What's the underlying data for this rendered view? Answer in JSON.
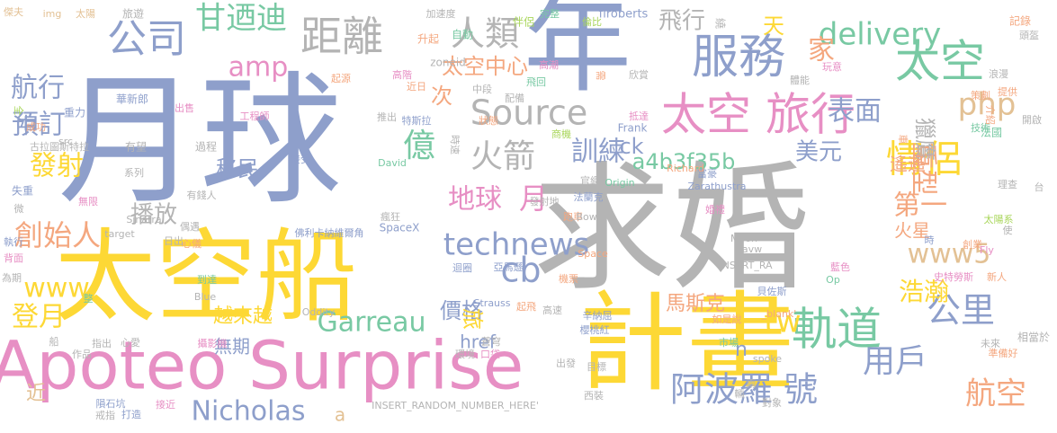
{
  "colors": {
    "background": "#ffffff",
    "palette": {
      "blue": "#8e9fcb",
      "gray": "#b4b4b4",
      "yellow": "#fdd835",
      "orange": "#f4a77f",
      "green": "#78c9a3",
      "pink": "#e78fc4",
      "lime": "#a9d65b",
      "tan": "#e3c194"
    }
  },
  "words": [
    {
      "text": "月球",
      "color": "blue"
    },
    {
      "text": "求婚",
      "color": "gray"
    },
    {
      "text": "年",
      "color": "blue"
    },
    {
      "text": "太空船",
      "color": "yellow"
    },
    {
      "text": "計畫",
      "color": "yellow"
    },
    {
      "text": "Apoteo Surprise",
      "color": "pink"
    },
    {
      "text": "服務",
      "color": "blue"
    },
    {
      "text": "太空",
      "color": "green"
    },
    {
      "text": "太空 旅行",
      "color": "pink"
    },
    {
      "text": "軌道",
      "color": "green"
    },
    {
      "text": "阿波羅 號",
      "color": "blue"
    },
    {
      "text": "距離",
      "color": "gray"
    },
    {
      "text": "公司",
      "color": "blue"
    },
    {
      "text": "Source",
      "color": "gray"
    },
    {
      "text": "delivery",
      "color": "green"
    },
    {
      "text": "technews",
      "color": "blue"
    },
    {
      "text": "甘迺迪",
      "color": "green"
    },
    {
      "text": "人類",
      "color": "gray"
    },
    {
      "text": "表面",
      "color": "blue"
    },
    {
      "text": "億",
      "color": "green"
    },
    {
      "text": "火箭",
      "color": "gray"
    },
    {
      "text": "情侶",
      "color": "yellow"
    },
    {
      "text": "cb",
      "color": "blue"
    },
    {
      "text": "www5",
      "color": "tan"
    },
    {
      "text": "Garreau",
      "color": "green"
    },
    {
      "text": "公里",
      "color": "blue"
    },
    {
      "text": "Nicholas",
      "color": "blue"
    },
    {
      "text": "地球",
      "color": "pink"
    },
    {
      "text": "月",
      "color": "pink"
    },
    {
      "text": "tw",
      "color": "yellow"
    },
    {
      "text": "用戶",
      "color": "blue"
    },
    {
      "text": "航空",
      "color": "orange"
    },
    {
      "text": "amp",
      "color": "pink"
    },
    {
      "text": "www",
      "color": "yellow"
    },
    {
      "text": "創始人",
      "color": "orange"
    },
    {
      "text": "發射",
      "color": "yellow"
    },
    {
      "text": "訓練",
      "color": "blue"
    },
    {
      "text": "php",
      "color": "tan"
    },
    {
      "text": "航行",
      "color": "blue"
    },
    {
      "text": "預訂",
      "color": "blue"
    },
    {
      "text": "登月",
      "color": "yellow"
    },
    {
      "text": "重型",
      "color": "orange"
    },
    {
      "text": "第一",
      "color": "orange"
    },
    {
      "text": "家",
      "color": "orange"
    },
    {
      "text": "天",
      "color": "yellow"
    },
    {
      "text": "太空中心",
      "color": "orange"
    },
    {
      "text": "次",
      "color": "orange"
    },
    {
      "text": "飛行",
      "color": "gray"
    },
    {
      "text": "中",
      "color": "blue"
    },
    {
      "text": "a4b3f35b",
      "color": "green"
    },
    {
      "text": "播放",
      "color": "gray"
    },
    {
      "text": "移民",
      "color": "blue"
    },
    {
      "text": "價格",
      "color": "blue"
    },
    {
      "text": "美元",
      "color": "blue"
    },
    {
      "text": "獵鷹",
      "color": "gray"
    },
    {
      "text": "浩瀚",
      "color": "yellow"
    },
    {
      "text": "旅",
      "color": "yellow"
    },
    {
      "text": "無期",
      "color": "blue"
    },
    {
      "text": "href",
      "color": "blue"
    },
    {
      "text": "馬斯克",
      "color": "orange"
    },
    {
      "text": "越來越",
      "color": "yellow"
    },
    {
      "text": "遙遙",
      "color": "orange"
    },
    {
      "text": "火星",
      "color": "orange"
    },
    {
      "text": "ck",
      "color": "blue"
    },
    {
      "text": "n",
      "color": "blue"
    },
    {
      "text": "a",
      "color": "tan"
    },
    {
      "text": "近",
      "color": "tan"
    },
    {
      "text": "傑夫",
      "color": "tan"
    },
    {
      "text": "img",
      "color": "tan"
    },
    {
      "text": "太陽",
      "color": "tan"
    },
    {
      "text": "旅遊",
      "color": "gray"
    },
    {
      "text": "加速度",
      "color": "gray"
    },
    {
      "text": "完整",
      "color": "green"
    },
    {
      "text": "flroberts",
      "color": "blue"
    },
    {
      "text": "繞",
      "color": "gray"
    },
    {
      "text": "記錄",
      "color": "orange"
    },
    {
      "text": "頭盔",
      "color": "gray"
    },
    {
      "text": "升起",
      "color": "orange"
    },
    {
      "text": "自動",
      "color": "green"
    },
    {
      "text": "伴侶",
      "color": "lime"
    },
    {
      "text": "倫比",
      "color": "lime"
    },
    {
      "text": "zoneid",
      "color": "gray"
    },
    {
      "text": "起源",
      "color": "orange"
    },
    {
      "text": "高階",
      "color": "pink"
    },
    {
      "text": "高潮",
      "color": "pink"
    },
    {
      "text": "玩意",
      "color": "pink"
    },
    {
      "text": "浪漫",
      "color": "gray"
    },
    {
      "text": "華新郎",
      "color": "blue"
    },
    {
      "text": "中段",
      "color": "gray"
    },
    {
      "text": "飛回",
      "color": "green"
    },
    {
      "text": "需",
      "color": "orange"
    },
    {
      "text": "欣賞",
      "color": "gray"
    },
    {
      "text": "體能",
      "color": "gray"
    },
    {
      "text": "提供",
      "color": "orange"
    },
    {
      "text": "重力",
      "color": "blue"
    },
    {
      "text": "全",
      "color": "lime"
    },
    {
      "text": "出售",
      "color": "pink"
    },
    {
      "text": "工程師",
      "color": "pink"
    },
    {
      "text": "近日",
      "color": "orange"
    },
    {
      "text": "配備",
      "color": "gray"
    },
    {
      "text": "策劃",
      "color": "orange"
    },
    {
      "text": "技術",
      "color": "green"
    },
    {
      "text": "開啟",
      "color": "gray"
    },
    {
      "text": "成功",
      "color": "orange"
    },
    {
      "text": "src",
      "color": "gray"
    },
    {
      "text": "有望",
      "color": "gray"
    },
    {
      "text": "推出",
      "color": "gray"
    },
    {
      "text": "特斯拉",
      "color": "blue"
    },
    {
      "text": "狀態",
      "color": "orange"
    },
    {
      "text": "抵達",
      "color": "pink"
    },
    {
      "text": "介紹",
      "color": "orange"
    },
    {
      "text": "法國",
      "color": "green"
    },
    {
      "text": "古拉圖斯特拉",
      "color": "gray"
    },
    {
      "text": "系列",
      "color": "gray"
    },
    {
      "text": "商機",
      "color": "lime"
    },
    {
      "text": "Frank",
      "color": "blue"
    },
    {
      "text": "時速",
      "color": "gray"
    },
    {
      "text": "過程",
      "color": "gray"
    },
    {
      "text": "接受",
      "color": "blue"
    },
    {
      "text": "Origin",
      "color": "green"
    },
    {
      "text": "富豪",
      "color": "blue"
    },
    {
      "text": "車",
      "color": "orange"
    },
    {
      "text": "失重",
      "color": "blue"
    },
    {
      "text": "無限",
      "color": "pink"
    },
    {
      "text": "有錢人",
      "color": "gray"
    },
    {
      "text": "David",
      "color": "green"
    },
    {
      "text": "官網",
      "color": "gray"
    },
    {
      "text": "Richard",
      "color": "orange"
    },
    {
      "text": "理查",
      "color": "gray"
    },
    {
      "text": "微",
      "color": "gray"
    },
    {
      "text": "偶遇",
      "color": "gray"
    },
    {
      "text": "瘋狂",
      "color": "gray"
    },
    {
      "text": "發射地",
      "color": "gray"
    },
    {
      "text": "法蘭克",
      "color": "blue"
    },
    {
      "text": "Zarathustra",
      "color": "blue"
    },
    {
      "text": "台",
      "color": "gray"
    },
    {
      "text": "Sinatra",
      "color": "gray"
    },
    {
      "text": "跑車",
      "color": "orange"
    },
    {
      "text": "Bowie",
      "color": "gray"
    },
    {
      "text": "婚禮",
      "color": "pink"
    },
    {
      "text": "太陽系",
      "color": "lime"
    },
    {
      "text": "target",
      "color": "gray"
    },
    {
      "text": "日出",
      "color": "gray"
    },
    {
      "text": "佛利卡納維爾角",
      "color": "blue"
    },
    {
      "text": "SpaceX",
      "color": "blue"
    },
    {
      "text": "Moon",
      "color": "gray"
    },
    {
      "text": "avw",
      "color": "gray"
    },
    {
      "text": "使",
      "color": "gray"
    },
    {
      "text": "心儀",
      "color": "orange"
    },
    {
      "text": "時",
      "color": "blue"
    },
    {
      "text": "創業",
      "color": "orange"
    },
    {
      "text": "執行",
      "color": "blue"
    },
    {
      "text": "Fly",
      "color": "pink"
    },
    {
      "text": "為期",
      "color": "gray"
    },
    {
      "text": "背面",
      "color": "pink"
    },
    {
      "text": "到達",
      "color": "green"
    },
    {
      "text": "Space",
      "color": "orange"
    },
    {
      "text": "INSERT_RA",
      "color": "gray"
    },
    {
      "text": "迴圈",
      "color": "blue"
    },
    {
      "text": "亞馬遜",
      "color": "blue"
    },
    {
      "text": "機票",
      "color": "orange"
    },
    {
      "text": "史特勞斯",
      "color": "pink"
    },
    {
      "text": "整",
      "color": "green"
    },
    {
      "text": "Blue",
      "color": "gray"
    },
    {
      "text": "Strauss",
      "color": "blue"
    },
    {
      "text": "高速",
      "color": "gray"
    },
    {
      "text": "藍色",
      "color": "pink"
    },
    {
      "text": "Op",
      "color": "green"
    },
    {
      "text": "新人",
      "color": "orange"
    },
    {
      "text": "貝佐斯",
      "color": "blue"
    },
    {
      "text": "起飛",
      "color": "orange"
    },
    {
      "text": "辛納屈",
      "color": "blue"
    },
    {
      "text": "_blank'",
      "color": "orange"
    },
    {
      "text": "Oddity",
      "color": "gray"
    },
    {
      "text": "如是說",
      "color": "orange"
    },
    {
      "text": "櫻桃紅",
      "color": "blue"
    },
    {
      "text": "心愛",
      "color": "gray"
    },
    {
      "text": "攝影機",
      "color": "pink"
    },
    {
      "text": "未來",
      "color": "gray"
    },
    {
      "text": "市場",
      "color": "green"
    },
    {
      "text": "船",
      "color": "gray"
    },
    {
      "text": "指出",
      "color": "gray"
    },
    {
      "text": "蒼穹",
      "color": "gray"
    },
    {
      "text": "相當於",
      "color": "gray"
    },
    {
      "text": "作品",
      "color": "gray"
    },
    {
      "text": "環境",
      "color": "gray"
    },
    {
      "text": "口袋",
      "color": "pink"
    },
    {
      "text": "準備好",
      "color": "orange"
    },
    {
      "text": "spoke",
      "color": "gray"
    },
    {
      "text": "出發",
      "color": "gray"
    },
    {
      "text": "目標",
      "color": "gray"
    },
    {
      "text": "兩",
      "color": "gray"
    },
    {
      "text": "隕石坑",
      "color": "blue"
    },
    {
      "text": "接近",
      "color": "pink"
    },
    {
      "text": "輛",
      "color": "gray"
    },
    {
      "text": "西裝",
      "color": "gray"
    },
    {
      "text": "對象",
      "color": "gray"
    },
    {
      "text": "戒指",
      "color": "gray"
    },
    {
      "text": "打造",
      "color": "blue"
    },
    {
      "text": "INSERT_RANDOM_NUMBER_HERE'",
      "color": "gray"
    }
  ]
}
